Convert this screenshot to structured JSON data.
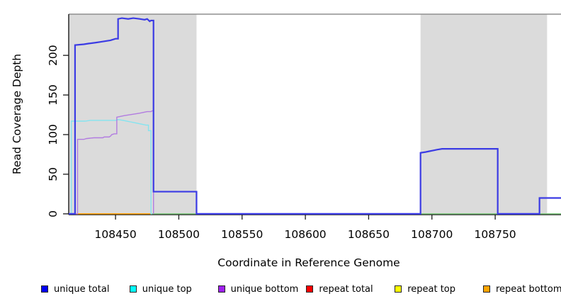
{
  "chart_data": {
    "type": "line",
    "title": "",
    "xlabel": "Coordinate in Reference Genome",
    "ylabel": "Read Coverage Depth",
    "xlim": [
      108413,
      108802
    ],
    "ylim": [
      -1,
      252
    ],
    "x_ticks": [
      108450,
      108500,
      108550,
      108600,
      108650,
      108700,
      108750
    ],
    "y_ticks": [
      0,
      50,
      100,
      150,
      200
    ],
    "grid": false,
    "legend_position": "bottom",
    "colors": {
      "shaded_region": "#dbdbdb",
      "plot_top_border": "#8f8f8f",
      "axis": "#1a1a1a",
      "tick_text": "#000000"
    },
    "shaded_regions": [
      {
        "x0": 108413,
        "x1": 108514
      },
      {
        "x0": 108691,
        "x1": 108791
      }
    ],
    "series": [
      {
        "id": "repeat-total",
        "name": "repeat total",
        "color": "#f00000",
        "width": 1.2,
        "points": [
          [
            108415,
            0
          ],
          [
            108478,
            0
          ]
        ]
      },
      {
        "id": "repeat-top",
        "name": "repeat top",
        "color": "#ffff00",
        "width": 1.2,
        "points": [
          [
            108415,
            0
          ],
          [
            108478,
            0
          ]
        ]
      },
      {
        "id": "baseline-green",
        "name": "baseline",
        "color": "#7cc87c",
        "width": 1.4,
        "points": [
          [
            108478,
            0
          ],
          [
            108802,
            0
          ]
        ]
      },
      {
        "id": "repeat-bottom",
        "name": "repeat bottom",
        "color": "#ffa513",
        "width": 1.6,
        "points": [
          [
            108415,
            0
          ],
          [
            108478,
            0
          ]
        ]
      },
      {
        "id": "unique-top",
        "name": "unique top",
        "color": "#84e4f0",
        "width": 1.4,
        "points": [
          [
            108413,
            0
          ],
          [
            108415,
            0
          ],
          [
            108415,
            117
          ],
          [
            108426,
            117
          ],
          [
            108430,
            118
          ],
          [
            108451,
            118
          ],
          [
            108452,
            119
          ],
          [
            108456,
            118
          ],
          [
            108459,
            117
          ],
          [
            108462,
            116
          ],
          [
            108465,
            115
          ],
          [
            108468,
            114
          ],
          [
            108471,
            113
          ],
          [
            108474,
            112
          ],
          [
            108476,
            112
          ],
          [
            108476,
            105
          ],
          [
            108478,
            105
          ],
          [
            108478,
            0
          ],
          [
            108479,
            0
          ]
        ]
      },
      {
        "id": "unique-bottom",
        "name": "unique bottom",
        "color": "#b27ce0",
        "width": 1.4,
        "points": [
          [
            108413,
            0
          ],
          [
            108420,
            0
          ],
          [
            108420,
            94
          ],
          [
            108425,
            94
          ],
          [
            108427,
            95
          ],
          [
            108433,
            96
          ],
          [
            108440,
            96
          ],
          [
            108441,
            97
          ],
          [
            108445,
            97
          ],
          [
            108446,
            98
          ],
          [
            108447,
            100
          ],
          [
            108449,
            101
          ],
          [
            108451,
            101
          ],
          [
            108451,
            122
          ],
          [
            108454,
            123
          ],
          [
            108457,
            124
          ],
          [
            108461,
            125
          ],
          [
            108465,
            126
          ],
          [
            108469,
            127
          ],
          [
            108472,
            128
          ],
          [
            108475,
            129
          ],
          [
            108478,
            129
          ],
          [
            108479,
            130
          ],
          [
            108480,
            130
          ],
          [
            108480,
            0
          ]
        ]
      },
      {
        "id": "unique-total",
        "name": "unique total",
        "color": "#3b3be4",
        "width": 2.2,
        "points": [
          [
            108413,
            0
          ],
          [
            108418,
            0
          ],
          [
            108418,
            213
          ],
          [
            108425,
            214
          ],
          [
            108429,
            215
          ],
          [
            108434,
            216
          ],
          [
            108438,
            217
          ],
          [
            108442,
            218
          ],
          [
            108446,
            219
          ],
          [
            108448,
            220
          ],
          [
            108450,
            221
          ],
          [
            108452,
            221
          ],
          [
            108452,
            246
          ],
          [
            108455,
            247
          ],
          [
            108460,
            246
          ],
          [
            108464,
            247
          ],
          [
            108469,
            246
          ],
          [
            108473,
            245
          ],
          [
            108475,
            246
          ],
          [
            108477,
            243
          ],
          [
            108478,
            244
          ],
          [
            108480,
            244
          ],
          [
            108480,
            28
          ],
          [
            108514,
            28
          ],
          [
            108514,
            0
          ],
          [
            108691,
            0
          ],
          [
            108691,
            77
          ],
          [
            108695,
            78
          ],
          [
            108698,
            79
          ],
          [
            108701,
            80
          ],
          [
            108704,
            81
          ],
          [
            108708,
            82
          ],
          [
            108752,
            82
          ],
          [
            108752,
            0
          ],
          [
            108785,
            0
          ],
          [
            108785,
            20
          ],
          [
            108802,
            20
          ]
        ]
      }
    ],
    "legend": {
      "items": [
        {
          "label": "unique total",
          "swatch_color": "#0000f5"
        },
        {
          "label": "unique top",
          "swatch_color": "#00ffff"
        },
        {
          "label": "unique bottom",
          "swatch_color": "#a020f0"
        },
        {
          "label": "repeat total",
          "swatch_color": "#ff0000"
        },
        {
          "label": "repeat top",
          "swatch_color": "#ffff00"
        },
        {
          "label": "repeat bottom",
          "swatch_color": "#ffa500"
        }
      ]
    }
  }
}
